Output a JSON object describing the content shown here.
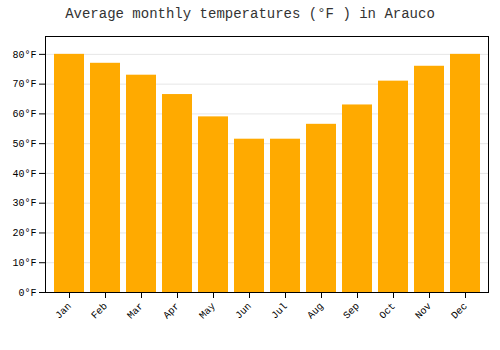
{
  "chart_data": {
    "type": "bar",
    "title": "Average monthly temperatures (°F ) in Arauco",
    "categories": [
      "Jan",
      "Feb",
      "Mar",
      "Apr",
      "May",
      "Jun",
      "Jul",
      "Aug",
      "Sep",
      "Oct",
      "Nov",
      "Dec"
    ],
    "values": [
      80,
      77,
      73,
      66.5,
      59,
      51.5,
      51.5,
      56.5,
      63,
      71,
      76,
      80
    ],
    "color": "#FFAA00",
    "ylim": [
      0,
      86
    ],
    "yticks": [
      {
        "value": 0,
        "label": "0°F"
      },
      {
        "value": 10,
        "label": "10°F"
      },
      {
        "value": 20,
        "label": "20°F"
      },
      {
        "value": 30,
        "label": "30°F"
      },
      {
        "value": 40,
        "label": "40°F"
      },
      {
        "value": 50,
        "label": "50°F"
      },
      {
        "value": 60,
        "label": "60°F"
      },
      {
        "value": 70,
        "label": "70°F"
      },
      {
        "value": 80,
        "label": "80°F"
      }
    ],
    "grid": true
  }
}
